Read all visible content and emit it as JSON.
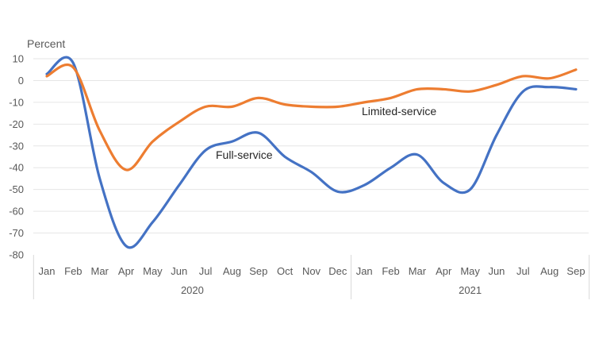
{
  "chart_data": {
    "type": "line",
    "ylabel": "Percent",
    "ylim": [
      -80,
      10
    ],
    "yticks": [
      10,
      0,
      -10,
      -20,
      -30,
      -40,
      -50,
      -60,
      -70,
      -80
    ],
    "categories": [
      "Jan",
      "Feb",
      "Mar",
      "Apr",
      "May",
      "Jun",
      "Jul",
      "Aug",
      "Sep",
      "Oct",
      "Nov",
      "Dec",
      "Jan",
      "Feb",
      "Mar",
      "Apr",
      "May",
      "Jun",
      "Jul",
      "Aug",
      "Sep"
    ],
    "year_groups": [
      {
        "label": "2020",
        "start": 0,
        "end": 11
      },
      {
        "label": "2021",
        "start": 12,
        "end": 20
      }
    ],
    "grid": true,
    "legend": "none",
    "series": [
      {
        "name": "Full-service",
        "color": "#4472C4",
        "values": [
          3,
          8,
          -45,
          -76,
          -65,
          -48,
          -32,
          -28,
          -24,
          -35,
          -42,
          -51,
          -48,
          -40,
          -34,
          -47,
          -50,
          -25,
          -5,
          -3,
          -4
        ]
      },
      {
        "name": "Limited-service",
        "color": "#ED7D31",
        "values": [
          2,
          6,
          -23,
          -41,
          -28,
          -19,
          -12,
          -12,
          -8,
          -11,
          -12,
          -12,
          -10,
          -8,
          -4,
          -4,
          -5,
          -2,
          2,
          1,
          5
        ]
      }
    ]
  }
}
